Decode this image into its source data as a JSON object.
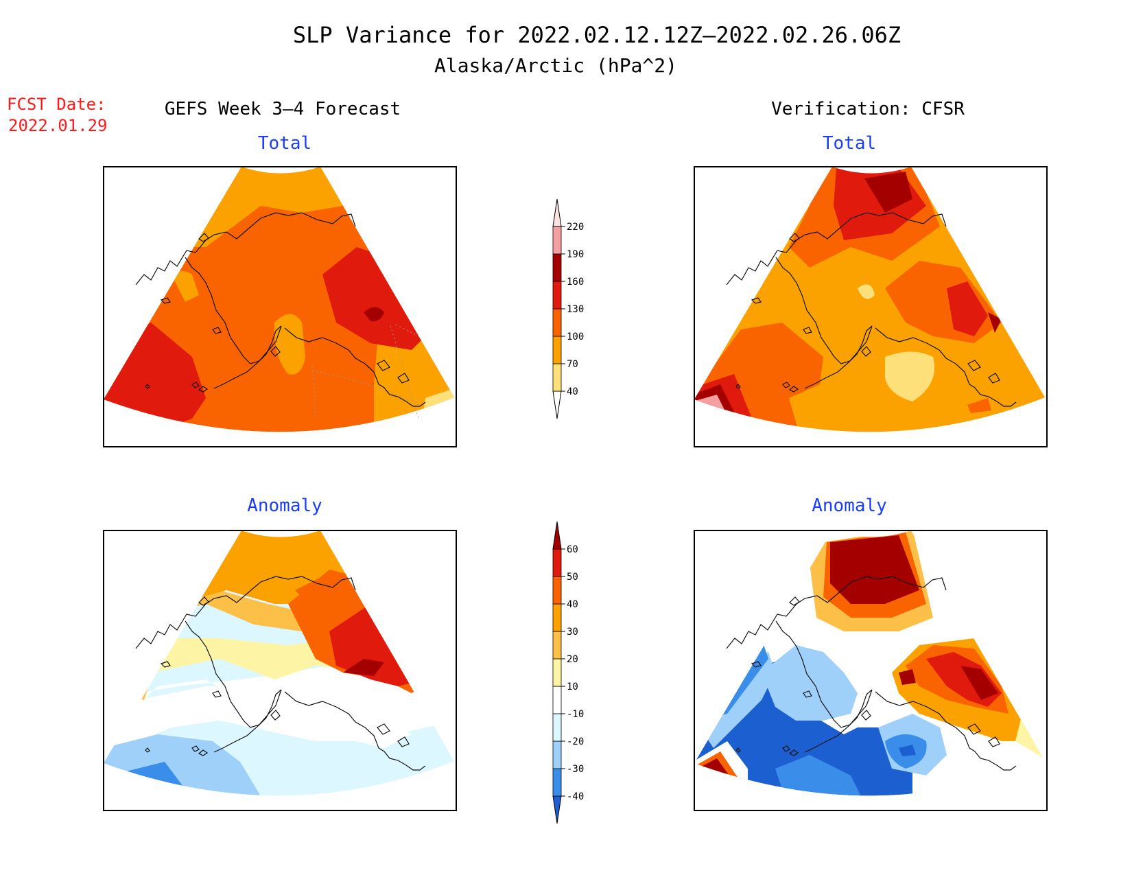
{
  "title": "SLP Variance for 2022.02.12.12Z–2022.02.26.06Z",
  "subtitle": "Alaska/Arctic (hPa^2)",
  "fcst_date": {
    "label": "FCST Date:",
    "value": "2022.01.29"
  },
  "columns": {
    "left": "GEFS Week 3–4 Forecast",
    "right": "Verification: CFSR"
  },
  "panels": {
    "fcst_total": {
      "label": "Total"
    },
    "verif_total": {
      "label": "Total"
    },
    "fcst_anom": {
      "label": "Anomaly"
    },
    "verif_anom": {
      "label": "Anomaly"
    }
  },
  "colors": {
    "title_red": "#ff1a1a",
    "panel_label_blue": "#1a3cff"
  },
  "colorbar_total": {
    "levels": [
      "40",
      "70",
      "100",
      "130",
      "160",
      "190",
      "220"
    ],
    "colors": [
      "#fde079",
      "#fba200",
      "#fa6400",
      "#e01a0d",
      "#a50000",
      "#f5a0a0",
      "#fde2e2"
    ]
  },
  "colorbar_anom": {
    "levels": [
      "-40",
      "-30",
      "-20",
      "-10",
      "10",
      "20",
      "30",
      "40",
      "50",
      "60"
    ],
    "colors": [
      "#1c5fd0",
      "#3a8eea",
      "#9fd0fa",
      "#dcf7ff",
      "#ffffff",
      "#fdf4a6",
      "#fcbf47",
      "#fba200",
      "#fa6400",
      "#e01a0d",
      "#a50000"
    ]
  }
}
